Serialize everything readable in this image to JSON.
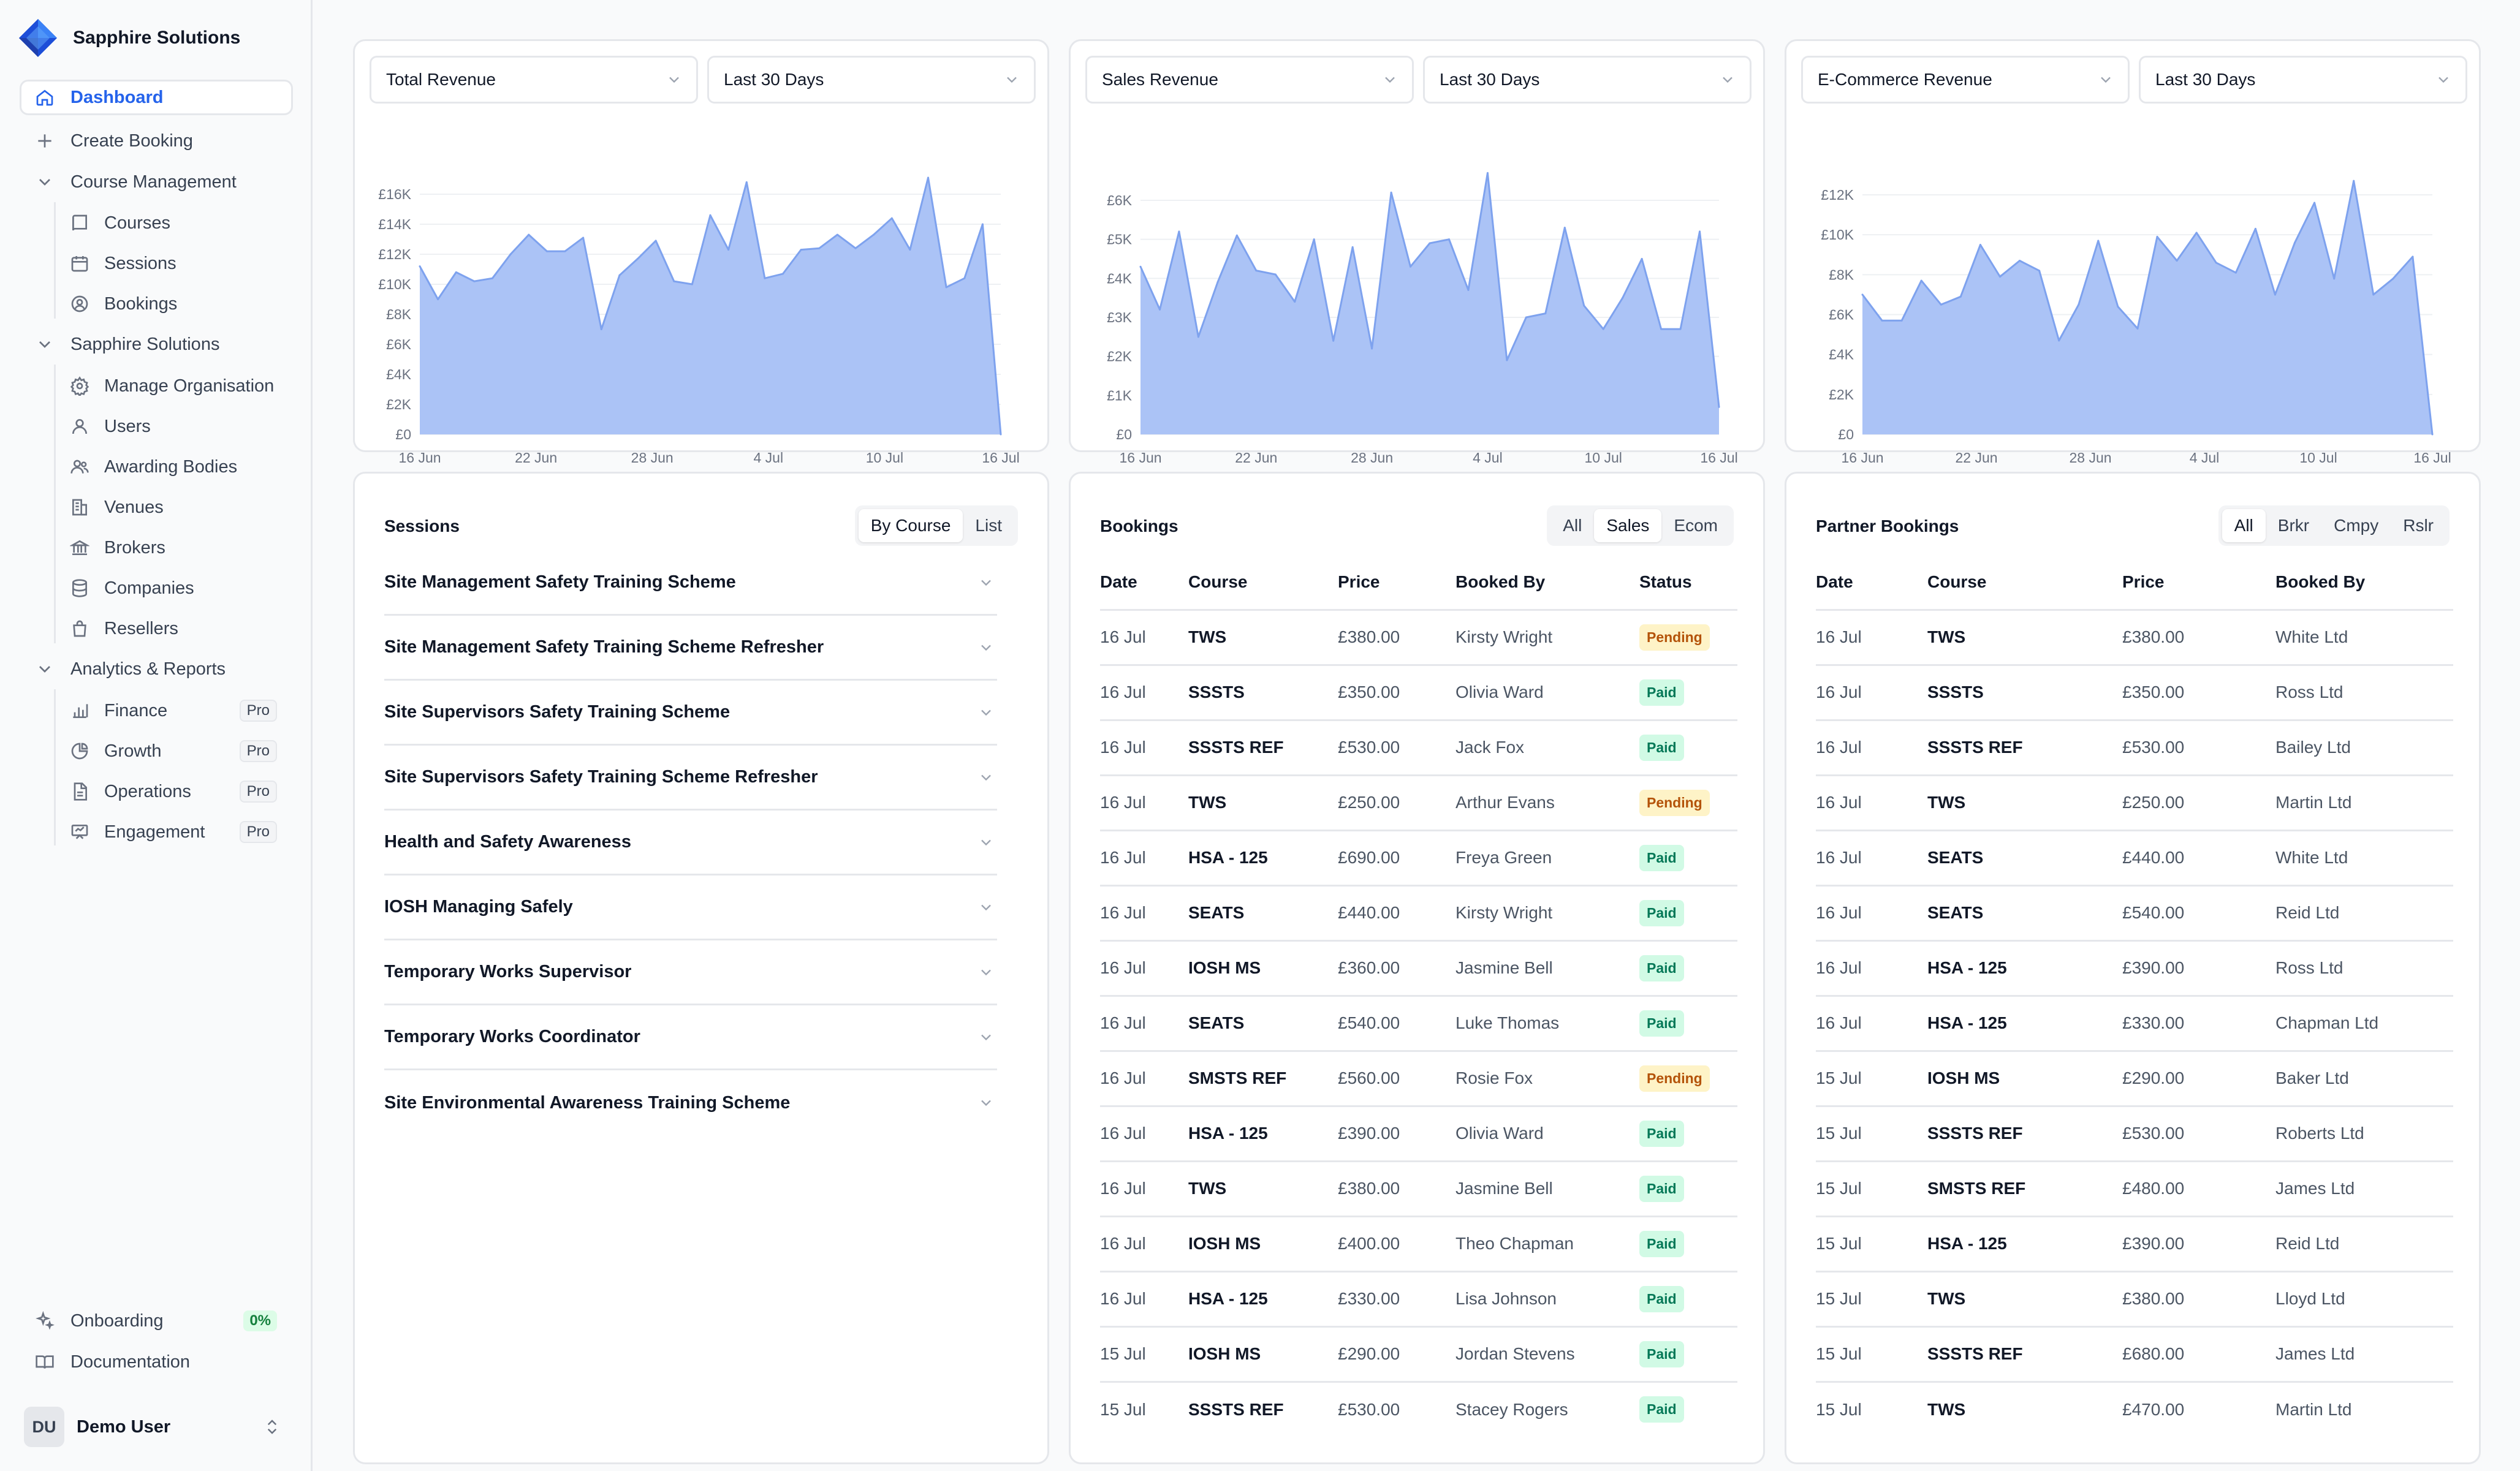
{
  "brand": {
    "name": "Sapphire Solutions"
  },
  "sidebar": {
    "dashboard": "Dashboard",
    "create_booking": "Create Booking",
    "course_management": "Course Management",
    "courses": "Courses",
    "sessions": "Sessions",
    "bookings": "Bookings",
    "org_section": "Sapphire Solutions",
    "manage_org": "Manage Organisation",
    "users": "Users",
    "awarding_bodies": "Awarding Bodies",
    "venues": "Venues",
    "brokers": "Brokers",
    "companies": "Companies",
    "resellers": "Resellers",
    "analytics": "Analytics & Reports",
    "finance": "Finance",
    "growth": "Growth",
    "operations": "Operations",
    "engagement": "Engagement",
    "pro_badge": "Pro",
    "onboarding": "Onboarding",
    "onboarding_pct": "0%",
    "documentation": "Documentation"
  },
  "user": {
    "initials": "DU",
    "name": "Demo User"
  },
  "colors": {
    "accent": "#2563eb",
    "chart_fill": "#a7c0f5",
    "chart_line": "#7ea2ee"
  },
  "charts": {
    "period_label": "Last 30 Days",
    "chart_data": [
      {
        "type": "area",
        "title": "Total Revenue",
        "yticks": [
          "£0",
          "£2K",
          "£4K",
          "£6K",
          "£8K",
          "£10K",
          "£12K",
          "£14K",
          "£16K"
        ],
        "ylim": [
          0,
          16000
        ],
        "xticks": [
          "16 Jun",
          "22 Jun",
          "28 Jun",
          "4 Jul",
          "10 Jul",
          "16 Jul"
        ],
        "values": [
          11200,
          9000,
          10800,
          10200,
          10400,
          12000,
          13300,
          12200,
          12200,
          13100,
          7000,
          10600,
          11700,
          12900,
          10200,
          10000,
          14600,
          12300,
          16800,
          10400,
          10700,
          12300,
          12400,
          13300,
          12400,
          13300,
          14400,
          12300,
          17100,
          9800,
          10400,
          14000,
          0
        ]
      },
      {
        "type": "area",
        "title": "Sales Revenue",
        "yticks": [
          "£0",
          "£1K",
          "£2K",
          "£3K",
          "£4K",
          "£5K",
          "£6K"
        ],
        "ylim": [
          0,
          6000
        ],
        "xticks": [
          "16 Jun",
          "22 Jun",
          "28 Jun",
          "4 Jul",
          "10 Jul",
          "16 Jul"
        ],
        "values": [
          4300,
          3200,
          5200,
          2500,
          3900,
          5100,
          4200,
          4100,
          3400,
          5000,
          2400,
          4800,
          2200,
          6200,
          4300,
          4900,
          5000,
          3700,
          6700,
          1900,
          3000,
          3100,
          5300,
          3300,
          2700,
          3500,
          4500,
          2700,
          2700,
          5200,
          700
        ]
      },
      {
        "type": "area",
        "title": "E-Commerce Revenue",
        "yticks": [
          "£0",
          "£2K",
          "£4K",
          "£6K",
          "£8K",
          "£10K",
          "£12K"
        ],
        "ylim": [
          0,
          12000
        ],
        "xticks": [
          "16 Jun",
          "22 Jun",
          "28 Jun",
          "4 Jul",
          "10 Jul",
          "16 Jul"
        ],
        "values": [
          7000,
          5700,
          5700,
          7700,
          6500,
          6900,
          9500,
          7900,
          8700,
          8200,
          4700,
          6500,
          9700,
          6400,
          5300,
          9900,
          8700,
          10100,
          8600,
          8100,
          10300,
          7000,
          9600,
          11600,
          7800,
          12700,
          7000,
          7800,
          8900,
          0
        ]
      }
    ]
  },
  "sessions": {
    "title": "Sessions",
    "toggle": [
      "By Course",
      "List"
    ],
    "items": [
      "Site Management Safety Training Scheme",
      "Site Management Safety Training Scheme Refresher",
      "Site Supervisors Safety Training Scheme",
      "Site Supervisors Safety Training Scheme Refresher",
      "Health and Safety Awareness",
      "IOSH Managing Safely",
      "Temporary Works Supervisor",
      "Temporary Works Coordinator",
      "Site Environmental Awareness Training Scheme"
    ]
  },
  "bookings": {
    "title": "Bookings",
    "filters": [
      "All",
      "Sales",
      "Ecom"
    ],
    "columns": [
      "Date",
      "Course",
      "Price",
      "Booked By",
      "Status"
    ],
    "rows": [
      {
        "date": "16 Jul",
        "course": "TWS",
        "price": "£380.00",
        "by": "Kirsty Wright",
        "status": "Pending"
      },
      {
        "date": "16 Jul",
        "course": "SSSTS",
        "price": "£350.00",
        "by": "Olivia Ward",
        "status": "Paid"
      },
      {
        "date": "16 Jul",
        "course": "SSSTS REF",
        "price": "£530.00",
        "by": "Jack Fox",
        "status": "Paid"
      },
      {
        "date": "16 Jul",
        "course": "TWS",
        "price": "£250.00",
        "by": "Arthur Evans",
        "status": "Pending"
      },
      {
        "date": "16 Jul",
        "course": "HSA - 125",
        "price": "£690.00",
        "by": "Freya Green",
        "status": "Paid"
      },
      {
        "date": "16 Jul",
        "course": "SEATS",
        "price": "£440.00",
        "by": "Kirsty Wright",
        "status": "Paid"
      },
      {
        "date": "16 Jul",
        "course": "IOSH MS",
        "price": "£360.00",
        "by": "Jasmine Bell",
        "status": "Paid"
      },
      {
        "date": "16 Jul",
        "course": "SEATS",
        "price": "£540.00",
        "by": "Luke Thomas",
        "status": "Paid"
      },
      {
        "date": "16 Jul",
        "course": "SMSTS REF",
        "price": "£560.00",
        "by": "Rosie Fox",
        "status": "Pending"
      },
      {
        "date": "16 Jul",
        "course": "HSA - 125",
        "price": "£390.00",
        "by": "Olivia Ward",
        "status": "Paid"
      },
      {
        "date": "16 Jul",
        "course": "TWS",
        "price": "£380.00",
        "by": "Jasmine Bell",
        "status": "Paid"
      },
      {
        "date": "16 Jul",
        "course": "IOSH MS",
        "price": "£400.00",
        "by": "Theo Chapman",
        "status": "Paid"
      },
      {
        "date": "16 Jul",
        "course": "HSA - 125",
        "price": "£330.00",
        "by": "Lisa Johnson",
        "status": "Paid"
      },
      {
        "date": "15 Jul",
        "course": "IOSH MS",
        "price": "£290.00",
        "by": "Jordan Stevens",
        "status": "Paid"
      },
      {
        "date": "15 Jul",
        "course": "SSSTS REF",
        "price": "£530.00",
        "by": "Stacey Rogers",
        "status": "Paid"
      }
    ]
  },
  "partner": {
    "title": "Partner Bookings",
    "filters": [
      "All",
      "Brkr",
      "Cmpy",
      "Rslr"
    ],
    "columns": [
      "Date",
      "Course",
      "Price",
      "Booked By"
    ],
    "rows": [
      {
        "date": "16 Jul",
        "course": "TWS",
        "price": "£380.00",
        "by": "White Ltd"
      },
      {
        "date": "16 Jul",
        "course": "SSSTS",
        "price": "£350.00",
        "by": "Ross Ltd"
      },
      {
        "date": "16 Jul",
        "course": "SSSTS REF",
        "price": "£530.00",
        "by": "Bailey Ltd"
      },
      {
        "date": "16 Jul",
        "course": "TWS",
        "price": "£250.00",
        "by": "Martin Ltd"
      },
      {
        "date": "16 Jul",
        "course": "SEATS",
        "price": "£440.00",
        "by": "White Ltd"
      },
      {
        "date": "16 Jul",
        "course": "SEATS",
        "price": "£540.00",
        "by": "Reid Ltd"
      },
      {
        "date": "16 Jul",
        "course": "HSA - 125",
        "price": "£390.00",
        "by": "Ross Ltd"
      },
      {
        "date": "16 Jul",
        "course": "HSA - 125",
        "price": "£330.00",
        "by": "Chapman Ltd"
      },
      {
        "date": "15 Jul",
        "course": "IOSH MS",
        "price": "£290.00",
        "by": "Baker Ltd"
      },
      {
        "date": "15 Jul",
        "course": "SSSTS REF",
        "price": "£530.00",
        "by": "Roberts Ltd"
      },
      {
        "date": "15 Jul",
        "course": "SMSTS REF",
        "price": "£480.00",
        "by": "James Ltd"
      },
      {
        "date": "15 Jul",
        "course": "HSA - 125",
        "price": "£390.00",
        "by": "Reid Ltd"
      },
      {
        "date": "15 Jul",
        "course": "TWS",
        "price": "£380.00",
        "by": "Lloyd Ltd"
      },
      {
        "date": "15 Jul",
        "course": "SSSTS REF",
        "price": "£680.00",
        "by": "James Ltd"
      },
      {
        "date": "15 Jul",
        "course": "TWS",
        "price": "£470.00",
        "by": "Martin Ltd"
      }
    ]
  }
}
